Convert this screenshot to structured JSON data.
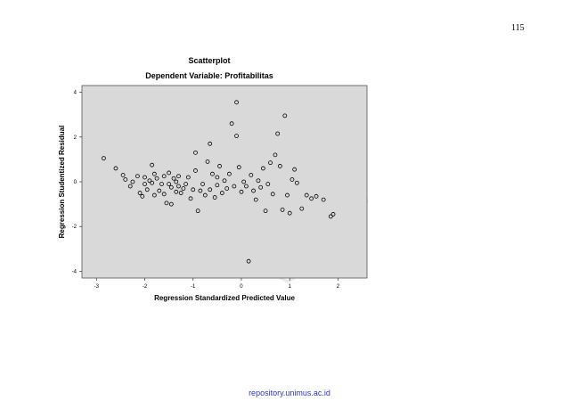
{
  "page": {
    "number": "115",
    "repository": "repository.unimus.ac.id"
  },
  "chart_data": {
    "type": "scatter",
    "title": "Scatterplot",
    "subtitle": "Dependent Variable: Profitabilitas",
    "xlabel": "Regression Standardized Predicted Value",
    "ylabel": "Regression Studentized Residual",
    "xlim": [
      -3.3,
      2.6
    ],
    "ylim": [
      -4.3,
      4.3
    ],
    "xticks": [
      -3,
      -2,
      -1,
      0,
      1,
      2
    ],
    "xtick_labels": [
      "-3",
      "-2",
      "-1",
      "0",
      "1",
      "2"
    ],
    "yticks": [
      -4,
      -2,
      0,
      2,
      4
    ],
    "ytick_labels": [
      "-4",
      "-2",
      "0",
      "2",
      "4"
    ],
    "grid": false,
    "legend": "none",
    "background_color": "#d9d9d9",
    "marker_color": "#000000",
    "points": [
      [
        -2.85,
        1.05
      ],
      [
        -2.6,
        0.6
      ],
      [
        -2.45,
        0.3
      ],
      [
        -2.4,
        0.1
      ],
      [
        -2.3,
        -0.2
      ],
      [
        -2.25,
        0.0
      ],
      [
        -2.15,
        0.25
      ],
      [
        -2.1,
        -0.5
      ],
      [
        -2.05,
        -0.65
      ],
      [
        -2.0,
        -0.1
      ],
      [
        -2.0,
        0.2
      ],
      [
        -1.95,
        -0.35
      ],
      [
        -1.9,
        0.05
      ],
      [
        -1.85,
        0.75
      ],
      [
        -1.85,
        -0.05
      ],
      [
        -1.8,
        -0.6
      ],
      [
        -1.8,
        0.35
      ],
      [
        -1.75,
        0.15
      ],
      [
        -1.7,
        -0.4
      ],
      [
        -1.65,
        -0.1
      ],
      [
        -1.6,
        0.25
      ],
      [
        -1.55,
        -0.95
      ],
      [
        -1.5,
        -0.1
      ],
      [
        -1.5,
        0.4
      ],
      [
        -1.45,
        -0.25
      ],
      [
        -1.45,
        -1.0
      ],
      [
        -1.4,
        0.15
      ],
      [
        -1.35,
        -0.45
      ],
      [
        -1.3,
        -0.2
      ],
      [
        -1.3,
        0.25
      ],
      [
        -1.25,
        -0.5
      ],
      [
        -1.2,
        -0.3
      ],
      [
        -1.15,
        -0.1
      ],
      [
        -1.1,
        0.2
      ],
      [
        -1.05,
        -0.75
      ],
      [
        -1.0,
        -0.35
      ],
      [
        -0.95,
        1.3
      ],
      [
        -0.95,
        0.5
      ],
      [
        -0.9,
        -1.3
      ],
      [
        -0.85,
        -0.4
      ],
      [
        -0.8,
        -0.1
      ],
      [
        -0.75,
        -0.6
      ],
      [
        -0.7,
        0.9
      ],
      [
        -0.65,
        1.7
      ],
      [
        -0.65,
        -0.35
      ],
      [
        -0.6,
        0.35
      ],
      [
        -0.55,
        -0.7
      ],
      [
        -0.5,
        0.2
      ],
      [
        -0.5,
        -0.15
      ],
      [
        -0.45,
        0.7
      ],
      [
        -0.4,
        -0.5
      ],
      [
        -0.35,
        0.05
      ],
      [
        -0.3,
        -0.3
      ],
      [
        -0.25,
        0.35
      ],
      [
        -0.2,
        2.6
      ],
      [
        -0.15,
        -0.2
      ],
      [
        -0.1,
        3.55
      ],
      [
        -0.1,
        2.05
      ],
      [
        -0.05,
        0.65
      ],
      [
        0.0,
        -0.45
      ],
      [
        0.05,
        0.0
      ],
      [
        0.1,
        -0.2
      ],
      [
        0.15,
        -3.55
      ],
      [
        0.2,
        0.3
      ],
      [
        0.25,
        -0.4
      ],
      [
        0.3,
        -0.8
      ],
      [
        0.35,
        0.05
      ],
      [
        0.4,
        -0.25
      ],
      [
        0.45,
        0.6
      ],
      [
        0.5,
        -1.3
      ],
      [
        0.55,
        -0.1
      ],
      [
        0.6,
        0.85
      ],
      [
        0.65,
        -0.55
      ],
      [
        0.7,
        1.2
      ],
      [
        0.75,
        2.15
      ],
      [
        0.8,
        0.7
      ],
      [
        0.85,
        -1.25
      ],
      [
        0.9,
        2.95
      ],
      [
        0.95,
        -0.6
      ],
      [
        1.0,
        -1.4
      ],
      [
        1.05,
        0.1
      ],
      [
        1.1,
        0.55
      ],
      [
        1.15,
        -0.05
      ],
      [
        1.35,
        -0.6
      ],
      [
        1.45,
        -0.75
      ],
      [
        1.55,
        -0.65
      ],
      [
        1.7,
        -0.8
      ],
      [
        1.85,
        -1.55
      ],
      [
        1.9,
        -1.45
      ],
      [
        1.25,
        -1.2
      ],
      [
        -1.35,
        0.0
      ],
      [
        -1.6,
        -0.55
      ]
    ]
  }
}
